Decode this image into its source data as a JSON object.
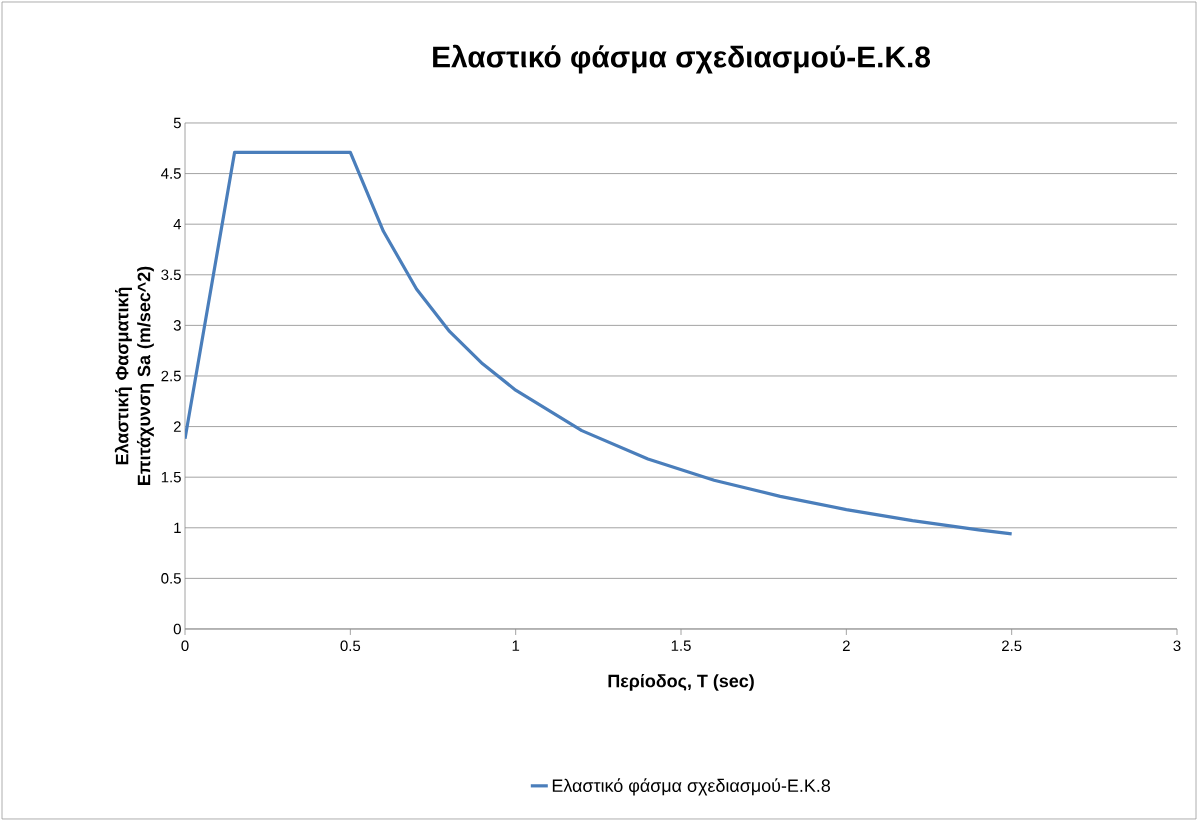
{
  "chart_data": {
    "type": "line",
    "title": "Ελαστικό φάσμα σχεδιασμού-Ε.Κ.8",
    "xlabel": "Περίοδος, T (sec)",
    "ylabel": "Ελαστική Φασματική Επιτάχυνση Sa  (m/sec^2)",
    "x": [
      0,
      0.15,
      0.5,
      0.6,
      0.7,
      0.8,
      0.9,
      1.0,
      1.2,
      1.4,
      1.6,
      1.8,
      2.0,
      2.2,
      2.4,
      2.5
    ],
    "series": [
      {
        "name": "Ελαστικό φάσμα σχεδιασμού-Ε.Κ.8",
        "color": "#4a7ebb",
        "values": [
          1.88,
          4.71,
          4.71,
          3.93,
          3.36,
          2.94,
          2.62,
          2.36,
          1.96,
          1.68,
          1.47,
          1.31,
          1.18,
          1.07,
          0.98,
          0.94
        ]
      }
    ],
    "xlim": [
      0,
      3
    ],
    "ylim": [
      0,
      5
    ],
    "xticks": [
      0,
      0.5,
      1,
      1.5,
      2,
      2.5,
      3
    ],
    "yticks": [
      0,
      0.5,
      1,
      1.5,
      2,
      2.5,
      3,
      3.5,
      4,
      4.5,
      5
    ],
    "grid": "y",
    "legend": "bottom",
    "marker": "none",
    "line_style": "solid"
  }
}
